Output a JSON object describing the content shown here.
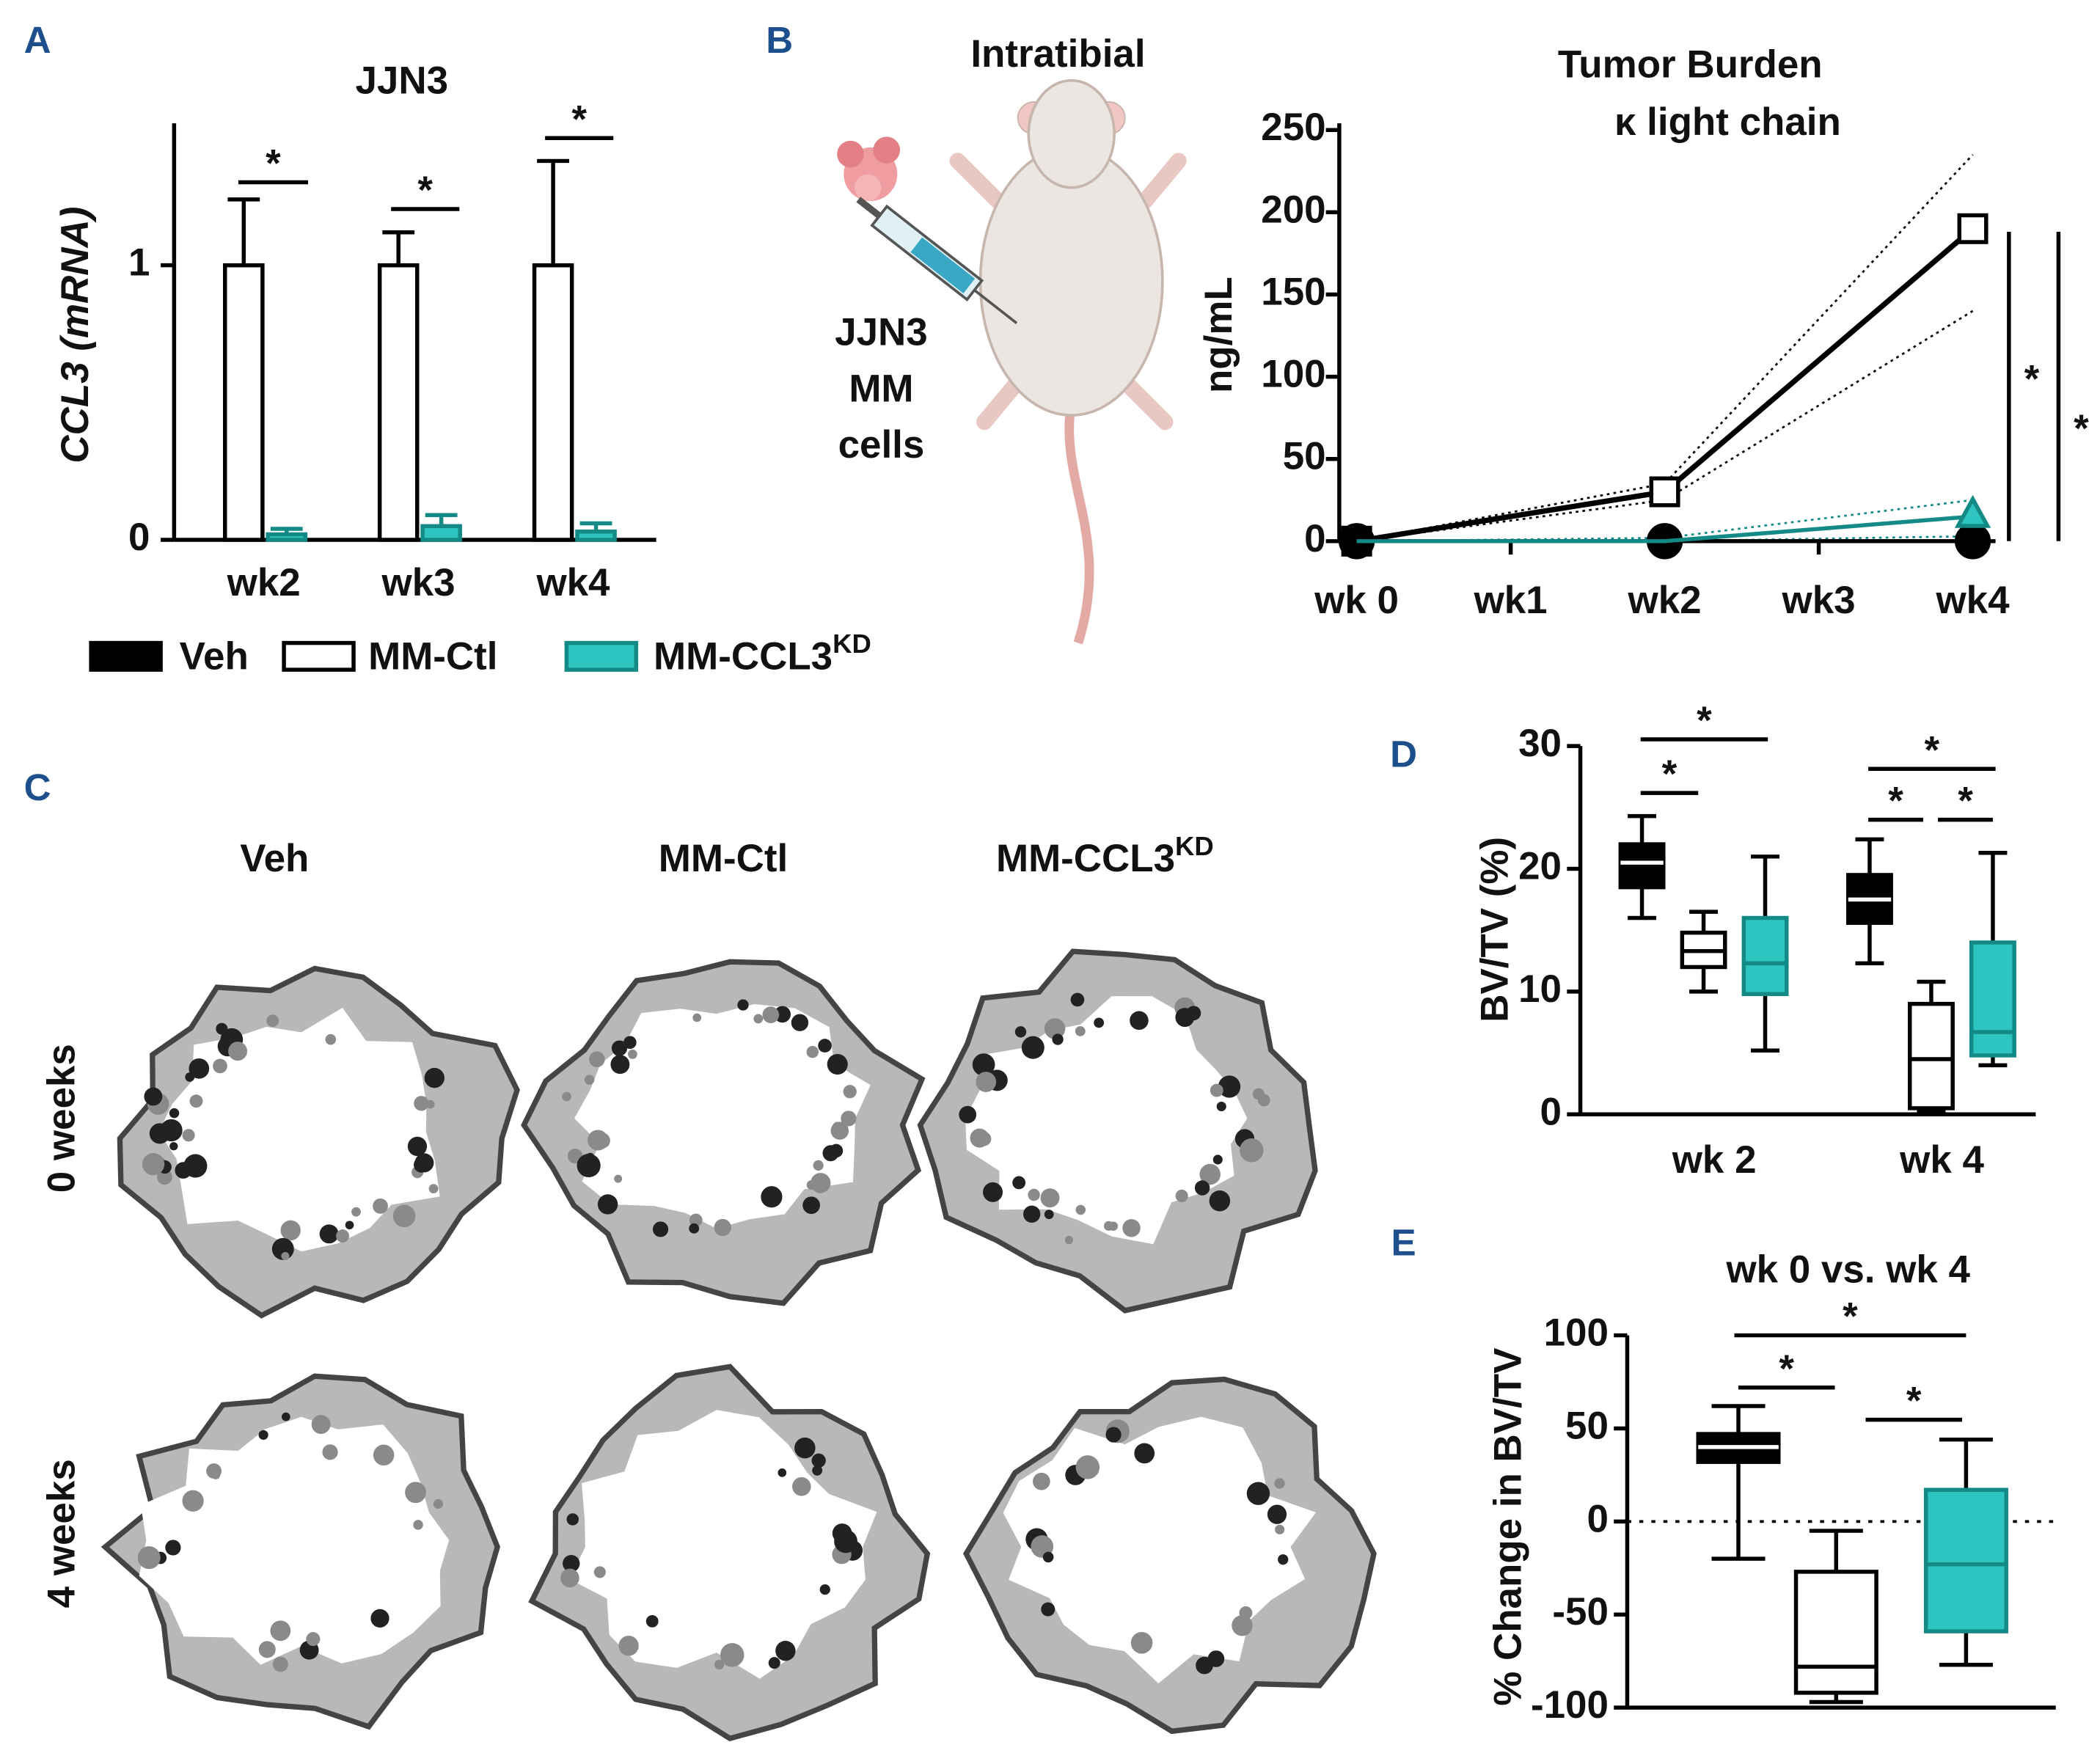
{
  "legend": [
    {
      "name": "Veh",
      "color": "#000000",
      "edge": "#000000"
    },
    {
      "name": "MM-Ctl",
      "color": "#ffffff",
      "edge": "#000000"
    },
    {
      "name": "MM-CCL3",
      "superscript": "KD",
      "color": "#2ec4bf",
      "edge": "#138a86"
    }
  ],
  "illustration_b": {
    "title": "Intratibial",
    "cells": [
      "JJN3",
      "MM",
      "cells"
    ]
  },
  "figure_c": {
    "label": "C",
    "columns": [
      {
        "name": "Veh"
      },
      {
        "name": "MM-Ctl"
      },
      {
        "name": "MM-CCL3",
        "superscript": "KD"
      }
    ],
    "rows": [
      "0 weeks",
      "4 weeks"
    ]
  },
  "chart_data": [
    {
      "type": "bar",
      "label": "A",
      "title": "JJN3",
      "ylabel": "CCL3 (mRNA)",
      "categories": [
        "wk2",
        "wk3",
        "wk4"
      ],
      "ylim": [
        0,
        1.5
      ],
      "yticks": [
        0,
        1
      ],
      "series": [
        {
          "color": "#ffffff",
          "edge": "#000000",
          "values": [
            1,
            1,
            1
          ],
          "errors": [
            0.24,
            0.12,
            0.38
          ]
        },
        {
          "color": "#2ec4bf",
          "edge": "#138a86",
          "values": [
            0.02,
            0.05,
            0.03
          ],
          "errors": [
            0.02,
            0.04,
            0.03
          ]
        }
      ],
      "annotations": [
        "*",
        "*",
        "*"
      ]
    },
    {
      "type": "line",
      "label": "B",
      "title": "Tumor Burden",
      "subtitle": "κ light chain",
      "ylabel": "ng/mL",
      "x": [
        0,
        2,
        4
      ],
      "xlim": [
        0,
        4
      ],
      "xticks": [
        {
          "value": 0,
          "label": "wk 0"
        },
        {
          "value": 1,
          "label": "wk1"
        },
        {
          "value": 2,
          "label": "wk2"
        },
        {
          "value": 3,
          "label": "wk3"
        },
        {
          "value": 4,
          "label": "wk4"
        }
      ],
      "ylim": [
        0,
        250
      ],
      "yticks": [
        0,
        50,
        100,
        150,
        200,
        250
      ],
      "series": [
        {
          "color": "#000000",
          "marker": "square",
          "fill": "#ffffff",
          "values": [
            0,
            30,
            190
          ],
          "upper": [
            0,
            35,
            235
          ],
          "lower": [
            0,
            25,
            140
          ]
        },
        {
          "color": "#000000",
          "marker": "circle",
          "fill": "#000000",
          "values": [
            0,
            0,
            0
          ]
        },
        {
          "color": "#138a86",
          "marker": "triangle",
          "fill": "#2ec4bf",
          "values": [
            0,
            0,
            15
          ],
          "upper": [
            0,
            2,
            25
          ],
          "lower": [
            0,
            0,
            3
          ]
        }
      ],
      "annotations": [
        "*",
        "*"
      ]
    },
    {
      "type": "box",
      "label": "D",
      "ylabel": "BV/TV (%)",
      "categories": [
        "wk 2",
        "wk 4"
      ],
      "ylim": [
        0,
        30
      ],
      "yticks": [
        0,
        10,
        20,
        30
      ],
      "series": [
        {
          "color": "#000000",
          "edge": "#000000",
          "min": [
            16,
            12.3
          ],
          "q1": [
            18.5,
            15.6
          ],
          "median": [
            20.5,
            17.5
          ],
          "q3": [
            22,
            19.5
          ],
          "max": [
            24.3,
            22.4
          ]
        },
        {
          "color": "#ffffff",
          "edge": "#000000",
          "min": [
            10,
            0.3
          ],
          "q1": [
            12,
            0.5
          ],
          "median": [
            13.3,
            4.5
          ],
          "q3": [
            14.8,
            9
          ],
          "max": [
            16.5,
            10.8
          ]
        },
        {
          "color": "#2ec4bf",
          "edge": "#138a86",
          "min": [
            5.2,
            4
          ],
          "q1": [
            9.8,
            4.8
          ],
          "median": [
            12.3,
            6.7
          ],
          "q3": [
            16,
            14
          ],
          "max": [
            21,
            21.3
          ]
        }
      ],
      "annotations": [
        "*",
        "*",
        "*",
        "*",
        "*"
      ]
    },
    {
      "type": "box",
      "label": "E",
      "title": "wk 0 vs. wk 4",
      "ylabel": "% Change in BV/TV",
      "categories": [
        null
      ],
      "ylim": [
        -100,
        100
      ],
      "yticks": [
        -100,
        -50,
        0,
        50,
        100
      ],
      "reference_line": 0,
      "series": [
        {
          "color": "#000000",
          "edge": "#000000",
          "min": [
            -20
          ],
          "q1": [
            32
          ],
          "median": [
            40
          ],
          "q3": [
            47
          ],
          "max": [
            62
          ]
        },
        {
          "color": "#ffffff",
          "edge": "#000000",
          "min": [
            -97
          ],
          "q1": [
            -92
          ],
          "median": [
            -78
          ],
          "q3": [
            -27
          ],
          "max": [
            -5
          ]
        },
        {
          "color": "#2ec4bf",
          "edge": "#138a86",
          "min": [
            -77
          ],
          "q1": [
            -59
          ],
          "median": [
            -23
          ],
          "q3": [
            17
          ],
          "max": [
            44
          ]
        }
      ],
      "annotations": [
        "*",
        "*",
        "*"
      ]
    }
  ]
}
